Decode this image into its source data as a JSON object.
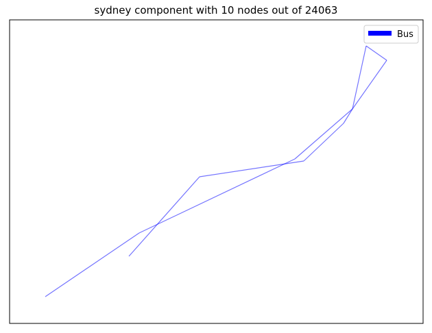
{
  "title": "sydney component with 10 nodes out of 24063",
  "legend": [
    {
      "label": "Bus",
      "color": "#0000ff"
    }
  ],
  "edge_color": "#0000ff",
  "edges": [
    [
      [
        66,
        433
      ],
      [
        203,
        340
      ]
    ],
    [
      [
        203,
        340
      ],
      [
        430,
        232
      ]
    ],
    [
      [
        430,
        232
      ],
      [
        514,
        159
      ]
    ],
    [
      [
        514,
        159
      ],
      [
        564,
        88
      ]
    ],
    [
      [
        564,
        88
      ],
      [
        534,
        67
      ]
    ],
    [
      [
        534,
        67
      ],
      [
        514,
        159
      ]
    ],
    [
      [
        514,
        159
      ],
      [
        501,
        180
      ]
    ],
    [
      [
        501,
        180
      ],
      [
        443,
        235
      ]
    ],
    [
      [
        443,
        235
      ],
      [
        291,
        258
      ]
    ],
    [
      [
        291,
        258
      ],
      [
        188,
        374
      ]
    ]
  ]
}
